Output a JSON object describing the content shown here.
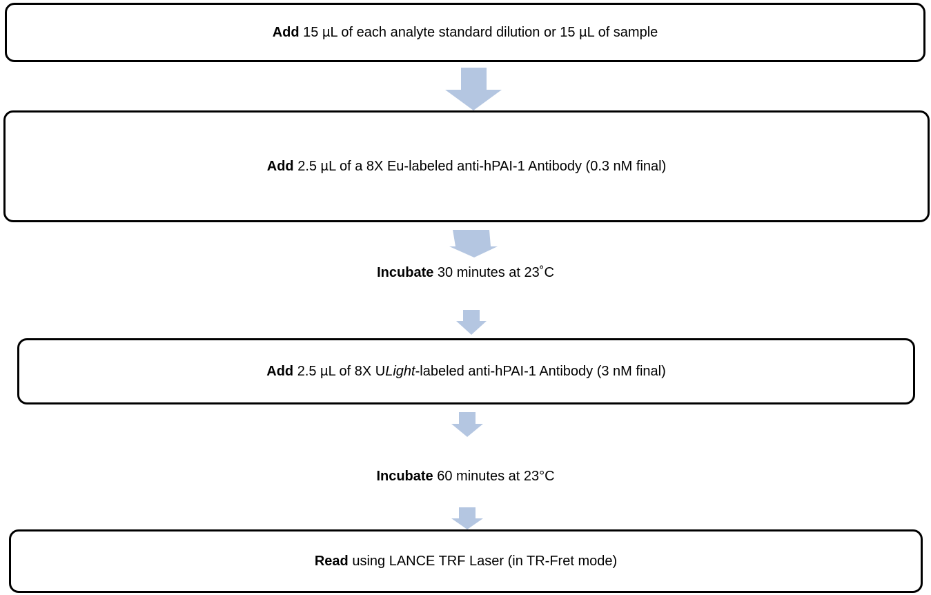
{
  "steps": [
    {
      "bold": "Add",
      "text": " 15 µL of each analyte standard dilution or 15 µL of sample"
    },
    {
      "bold": "Add",
      "text": " 2.5 µL of a 8X Eu-labeled anti-hPAI-1 Antibody (0.3 nM final)"
    },
    {
      "bold": "Incubate",
      "text": " 30 minutes at 23˚C"
    },
    {
      "bold": "Add",
      "text_before": " 2.5 µL of 8X U",
      "italic": "Light",
      "text_after": "-labeled anti-hPAI-1 Antibody (3 nM final)"
    },
    {
      "bold": "Incubate",
      "text": " 60 minutes at 23°C"
    },
    {
      "bold": "Read",
      "text": " using LANCE TRF Laser (in TR-Fret mode)"
    }
  ],
  "colors": {
    "arrow": "#b4c6e1",
    "border": "#000000"
  }
}
